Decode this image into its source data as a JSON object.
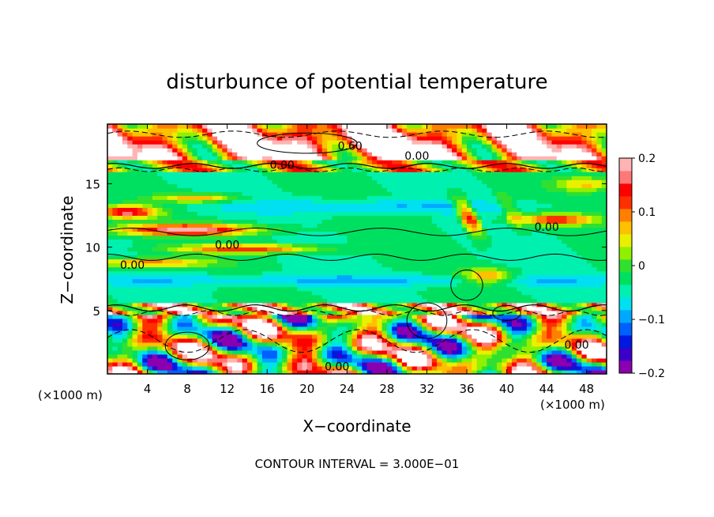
{
  "chart_data": {
    "type": "heatmap",
    "title": "disturbunce of potential temperature",
    "xlabel": "X−coordinate",
    "ylabel": "Z−coordinate",
    "x_unit": "(×1000 m)",
    "y_unit": "(×1000 m)",
    "xlim": [
      0,
      50
    ],
    "ylim": [
      0,
      19.7
    ],
    "x_ticks": [
      4,
      8,
      12,
      16,
      20,
      24,
      28,
      32,
      36,
      40,
      44,
      48
    ],
    "y_ticks": [
      5,
      10,
      15
    ],
    "colorbar": {
      "range": [
        -0.2,
        0.2
      ],
      "ticks": [
        {
          "value": 0.2,
          "label": "0.2"
        },
        {
          "value": 0.1,
          "label": "0.1"
        },
        {
          "value": 0,
          "label": "0"
        },
        {
          "value": -0.1,
          "label": "−0.1"
        },
        {
          "value": -0.2,
          "label": "−0.2"
        }
      ],
      "colors": [
        "#8a00b0",
        "#3a00c8",
        "#0018e0",
        "#0060ff",
        "#00a8ff",
        "#00e0f0",
        "#00f0b0",
        "#00e060",
        "#30e030",
        "#90f000",
        "#e8f000",
        "#ffc000",
        "#ff8000",
        "#ff3000",
        "#ff0000",
        "#ff7878",
        "#ffb4b4"
      ]
    },
    "contour_labels": [
      {
        "x": 24.3,
        "z": 18.0,
        "text": "0.60"
      },
      {
        "x": 17.5,
        "z": 16.5,
        "text": "0.00"
      },
      {
        "x": 31.0,
        "z": 17.2,
        "text": "0.00"
      },
      {
        "x": 12.0,
        "z": 10.2,
        "text": "0.00"
      },
      {
        "x": 2.5,
        "z": 8.6,
        "text": "0.00"
      },
      {
        "x": 44.0,
        "z": 11.6,
        "text": "0.00"
      },
      {
        "x": 23.0,
        "z": 0.6,
        "text": "0.00"
      },
      {
        "x": 47.0,
        "z": 2.3,
        "text": "0.00"
      }
    ],
    "contour_interval": "CONTOUR INTERVAL = 3.000E−01",
    "grid": false,
    "colormap": "rainbow (purple=-0.2 → white=0.2)"
  }
}
